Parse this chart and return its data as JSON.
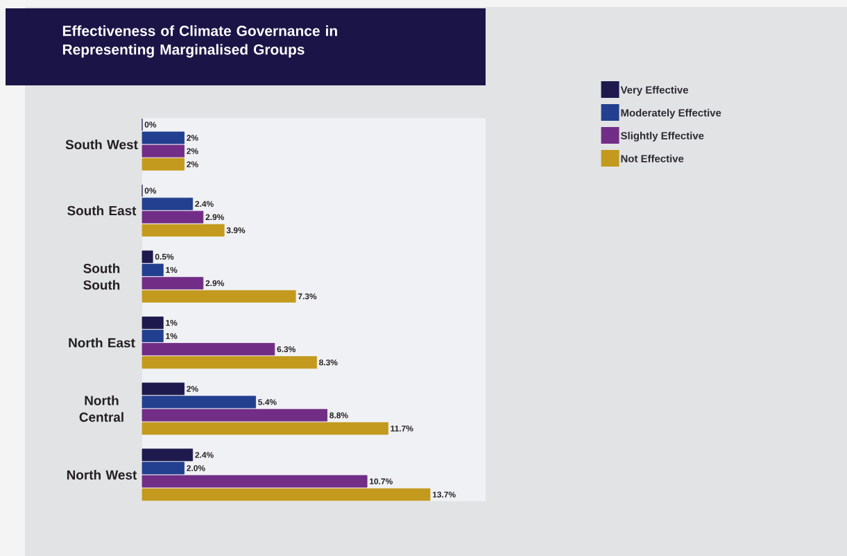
{
  "chart_data": {
    "type": "bar",
    "orientation": "horizontal",
    "title": "Effectiveness of Climate Governance in Representing Marginalised Groups",
    "categories": [
      "South West",
      "South East",
      "South South",
      "North East",
      "North Central",
      "North West"
    ],
    "series": [
      {
        "name": "Very Effective",
        "color": "#1e1a4d",
        "values": [
          0,
          0,
          0.5,
          1,
          2,
          2.4
        ],
        "value_labels": [
          "0%",
          "0%",
          "0.5%",
          "1%",
          "2%",
          "2.4%"
        ]
      },
      {
        "name": "Moderately Effective",
        "color": "#233f8f",
        "values": [
          2,
          2.4,
          1,
          1,
          5.4,
          2.0
        ],
        "value_labels": [
          "2%",
          "2.4%",
          "1%",
          "1%",
          "5.4%",
          "2.0%"
        ]
      },
      {
        "name": "Slightly Effective",
        "color": "#722d87",
        "values": [
          2,
          2.9,
          2.9,
          6.3,
          8.8,
          10.7
        ],
        "value_labels": [
          "2%",
          "2.9%",
          "2.9%",
          "6.3%",
          "8.8%",
          "10.7%"
        ]
      },
      {
        "name": "Not Effective",
        "color": "#c39a1e",
        "values": [
          2,
          3.9,
          7.3,
          8.3,
          11.7,
          13.7
        ],
        "value_labels": [
          "2%",
          "3.9%",
          "7.3%",
          "8.3%",
          "11.7%",
          "13.7%"
        ]
      }
    ],
    "tick_labels": "y",
    "legend": "right"
  }
}
